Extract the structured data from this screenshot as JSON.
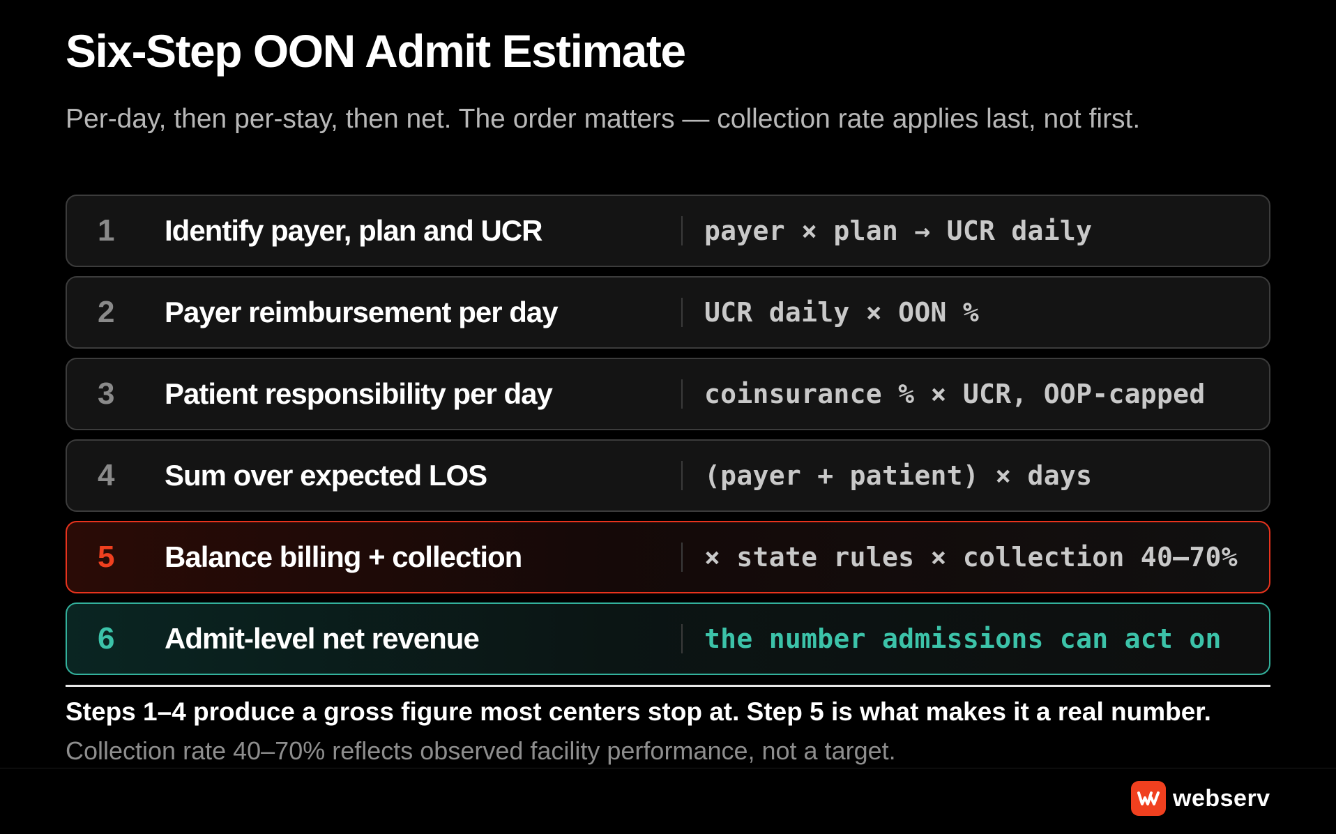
{
  "header": {
    "title": "Six-Step OON Admit Estimate",
    "subtitle": "Per-day, then per-stay, then net. The order matters — collection rate applies last, not first."
  },
  "steps": [
    {
      "number": "1",
      "label": "Identify payer, plan and UCR",
      "formula": "payer × plan → UCR daily",
      "status": "default"
    },
    {
      "number": "2",
      "label": "Payer reimbursement per day",
      "formula": "UCR daily × OON %",
      "status": "default"
    },
    {
      "number": "3",
      "label": "Patient responsibility per day",
      "formula": "coinsurance % × UCR, OOP-capped",
      "status": "default"
    },
    {
      "number": "4",
      "label": "Sum over expected LOS",
      "formula": "(payer + patient) × days",
      "status": "default"
    },
    {
      "number": "5",
      "label": "Balance billing + collection",
      "formula": "× state rules × collection 40–70%",
      "status": "warning"
    },
    {
      "number": "6",
      "label": "Admit-level net revenue",
      "formula": "the number admissions can act on",
      "status": "result"
    }
  ],
  "summary": {
    "main": "Steps 1–4 produce a gross figure most centers stop at. Step 5 is what makes it a real number.",
    "note": "Collection rate 40–70% reflects observed facility performance, not a target."
  },
  "brand": {
    "name": "webserv",
    "logo_icon": "webserv-logo-icon",
    "logo_color": "#f0401f"
  },
  "colors": {
    "background": "#000000",
    "warning_accent": "#e8331d",
    "result_accent": "#33b19c"
  }
}
